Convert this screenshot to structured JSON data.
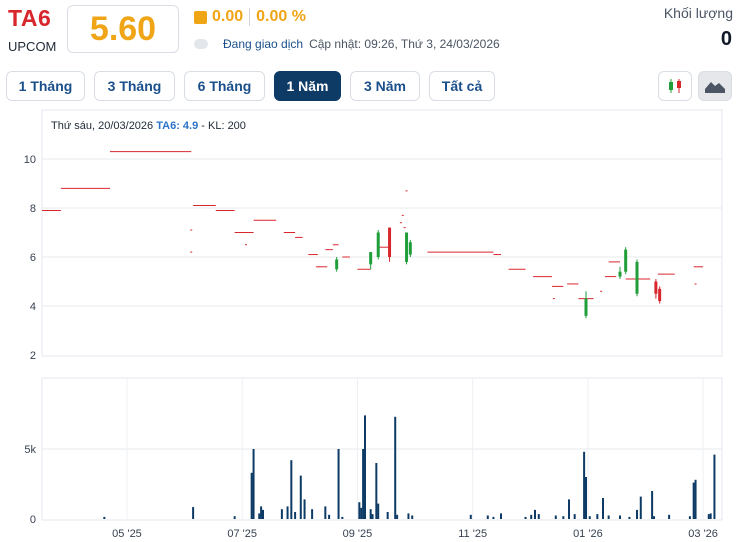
{
  "header": {
    "ticker": "TA6",
    "exchange": "UPCOM",
    "price": "5.60",
    "change": "0.00",
    "change_pct": "0.00 %",
    "status": "Đang giao dịch",
    "updated": "Cập nhật: 09:26, Thứ 3, 24/03/2026",
    "volume_label": "Khối lượng",
    "volume_value": "0"
  },
  "tabs": [
    {
      "label": "1 Tháng",
      "active": false
    },
    {
      "label": "3 Tháng",
      "active": false
    },
    {
      "label": "6 Tháng",
      "active": false
    },
    {
      "label": "1 Năm",
      "active": true
    },
    {
      "label": "3 Năm",
      "active": false
    },
    {
      "label": "Tất cả",
      "active": false
    }
  ],
  "chart_controls": {
    "candle_icon": "candlestick-icon",
    "area_icon": "mountain-area-icon"
  },
  "info": {
    "prefix": "Thứ sáu, 20/03/2026",
    "symbol_value": "TA6: 4.9",
    "volume": "- KL: 200"
  },
  "colors": {
    "up": "#1f9e3a",
    "down": "#d8262d",
    "ref": "#d8262d",
    "volume": "#0d3b66",
    "accent": "#f0a516"
  },
  "chart_data": {
    "type": "candlestick",
    "price_axis": {
      "ylim": [
        2,
        11
      ],
      "ticks": [
        "2",
        "4",
        "6",
        "8",
        "10"
      ]
    },
    "volume_axis": {
      "ylim": [
        0,
        8500
      ],
      "ticks": [
        "0",
        "5k"
      ]
    },
    "x_ticks": [
      "05 '25",
      "07 '25",
      "09 '25",
      "11 '25",
      "01 '26",
      "03 '26"
    ],
    "x_tick_days": [
      45,
      106,
      167,
      228,
      289,
      350
    ],
    "flat_segments": [
      {
        "x0": 0,
        "x1": 10,
        "y": 7.9
      },
      {
        "x0": 10,
        "x1": 36,
        "y": 8.8
      },
      {
        "x0": 36,
        "x1": 79,
        "y": 10.3
      },
      {
        "x0": 80,
        "x1": 92,
        "y": 8.1
      },
      {
        "x0": 92,
        "x1": 102,
        "y": 7.9
      },
      {
        "x0": 102,
        "x1": 112,
        "y": 7.0
      },
      {
        "x0": 112,
        "x1": 124,
        "y": 7.5
      },
      {
        "x0": 128,
        "x1": 134,
        "y": 7.0
      },
      {
        "x0": 134,
        "x1": 138,
        "y": 6.8
      },
      {
        "x0": 141,
        "x1": 146,
        "y": 6.1
      },
      {
        "x0": 145,
        "x1": 151,
        "y": 5.6
      },
      {
        "x0": 150,
        "x1": 154,
        "y": 6.3
      },
      {
        "x0": 154,
        "x1": 157,
        "y": 6.5
      },
      {
        "x0": 159,
        "x1": 163,
        "y": 6.0
      },
      {
        "x0": 167,
        "x1": 174,
        "y": 5.5
      },
      {
        "x0": 178,
        "x1": 184,
        "y": 6.4
      },
      {
        "x0": 204,
        "x1": 239,
        "y": 6.2
      },
      {
        "x0": 239,
        "x1": 243,
        "y": 6.1
      },
      {
        "x0": 247,
        "x1": 256,
        "y": 5.5
      },
      {
        "x0": 260,
        "x1": 270,
        "y": 5.2
      },
      {
        "x0": 270,
        "x1": 276,
        "y": 4.8
      },
      {
        "x0": 278,
        "x1": 284,
        "y": 4.9
      },
      {
        "x0": 284,
        "x1": 292,
        "y": 4.3
      },
      {
        "x0": 298,
        "x1": 304,
        "y": 5.2
      },
      {
        "x0": 300,
        "x1": 306,
        "y": 5.8
      },
      {
        "x0": 309,
        "x1": 322,
        "y": 5.1
      },
      {
        "x0": 326,
        "x1": 335,
        "y": 5.3
      },
      {
        "x0": 345,
        "x1": 350,
        "y": 5.6
      }
    ],
    "candles": [
      {
        "x": 156,
        "o": 5.5,
        "c": 5.9,
        "h": 6.0,
        "l": 5.4
      },
      {
        "x": 174,
        "o": 5.7,
        "c": 6.2,
        "h": 6.2,
        "l": 5.5
      },
      {
        "x": 178,
        "o": 6.0,
        "c": 7.0,
        "h": 7.1,
        "l": 5.9
      },
      {
        "x": 184,
        "o": 7.2,
        "c": 6.0,
        "h": 7.2,
        "l": 5.8
      },
      {
        "x": 193,
        "o": 5.8,
        "c": 7.0,
        "h": 7.0,
        "l": 5.7
      },
      {
        "x": 195,
        "o": 6.1,
        "c": 6.6,
        "h": 6.7,
        "l": 6.0
      },
      {
        "x": 288,
        "o": 3.6,
        "c": 4.3,
        "h": 4.6,
        "l": 3.5
      },
      {
        "x": 306,
        "o": 5.2,
        "c": 5.4,
        "h": 5.6,
        "l": 5.1
      },
      {
        "x": 309,
        "o": 5.4,
        "c": 6.3,
        "h": 6.4,
        "l": 5.3
      },
      {
        "x": 315,
        "o": 4.5,
        "c": 5.8,
        "h": 5.9,
        "l": 4.4
      },
      {
        "x": 325,
        "o": 5.0,
        "c": 4.5,
        "h": 5.1,
        "l": 4.3
      },
      {
        "x": 327,
        "o": 4.7,
        "c": 4.2,
        "h": 4.8,
        "l": 4.1
      }
    ],
    "marks": [
      {
        "x": 79,
        "y": 7.1
      },
      {
        "x": 79,
        "y": 6.2
      },
      {
        "x": 108,
        "y": 6.5
      },
      {
        "x": 193,
        "y": 8.7
      },
      {
        "x": 191,
        "y": 7.7
      },
      {
        "x": 190,
        "y": 7.4
      },
      {
        "x": 192,
        "y": 7.2
      },
      {
        "x": 271,
        "y": 4.3
      },
      {
        "x": 296,
        "y": 4.6
      },
      {
        "x": 346,
        "y": 4.9
      }
    ],
    "volume": [
      {
        "x": 33,
        "v": 150
      },
      {
        "x": 80,
        "v": 850
      },
      {
        "x": 102,
        "v": 200
      },
      {
        "x": 111,
        "v": 3300
      },
      {
        "x": 112,
        "v": 5000
      },
      {
        "x": 115,
        "v": 400
      },
      {
        "x": 116,
        "v": 900
      },
      {
        "x": 117,
        "v": 650
      },
      {
        "x": 127,
        "v": 700
      },
      {
        "x": 130,
        "v": 900
      },
      {
        "x": 132,
        "v": 4200
      },
      {
        "x": 134,
        "v": 500
      },
      {
        "x": 137,
        "v": 3100
      },
      {
        "x": 139,
        "v": 1400
      },
      {
        "x": 143,
        "v": 700
      },
      {
        "x": 150,
        "v": 900
      },
      {
        "x": 152,
        "v": 300
      },
      {
        "x": 157,
        "v": 5000
      },
      {
        "x": 159,
        "v": 150
      },
      {
        "x": 168,
        "v": 1200
      },
      {
        "x": 169,
        "v": 800
      },
      {
        "x": 170,
        "v": 5000
      },
      {
        "x": 171,
        "v": 7400
      },
      {
        "x": 174,
        "v": 700
      },
      {
        "x": 175,
        "v": 350
      },
      {
        "x": 177,
        "v": 4000
      },
      {
        "x": 178,
        "v": 1100
      },
      {
        "x": 183,
        "v": 500
      },
      {
        "x": 187,
        "v": 7300
      },
      {
        "x": 188,
        "v": 300
      },
      {
        "x": 194,
        "v": 400
      },
      {
        "x": 196,
        "v": 250
      },
      {
        "x": 227,
        "v": 300
      },
      {
        "x": 236,
        "v": 250
      },
      {
        "x": 239,
        "v": 150
      },
      {
        "x": 243,
        "v": 400
      },
      {
        "x": 256,
        "v": 150
      },
      {
        "x": 259,
        "v": 300
      },
      {
        "x": 261,
        "v": 650
      },
      {
        "x": 263,
        "v": 350
      },
      {
        "x": 272,
        "v": 250
      },
      {
        "x": 276,
        "v": 200
      },
      {
        "x": 279,
        "v": 1400
      },
      {
        "x": 282,
        "v": 350
      },
      {
        "x": 287,
        "v": 4800
      },
      {
        "x": 288,
        "v": 3000
      },
      {
        "x": 290,
        "v": 200
      },
      {
        "x": 294,
        "v": 350
      },
      {
        "x": 297,
        "v": 1500
      },
      {
        "x": 300,
        "v": 250
      },
      {
        "x": 306,
        "v": 250
      },
      {
        "x": 311,
        "v": 150
      },
      {
        "x": 315,
        "v": 650
      },
      {
        "x": 317,
        "v": 1600
      },
      {
        "x": 323,
        "v": 2000
      },
      {
        "x": 324,
        "v": 200
      },
      {
        "x": 332,
        "v": 300
      },
      {
        "x": 343,
        "v": 200
      },
      {
        "x": 345,
        "v": 2600
      },
      {
        "x": 346,
        "v": 2800
      },
      {
        "x": 353,
        "v": 350
      },
      {
        "x": 354,
        "v": 400
      },
      {
        "x": 356,
        "v": 4600
      }
    ]
  }
}
